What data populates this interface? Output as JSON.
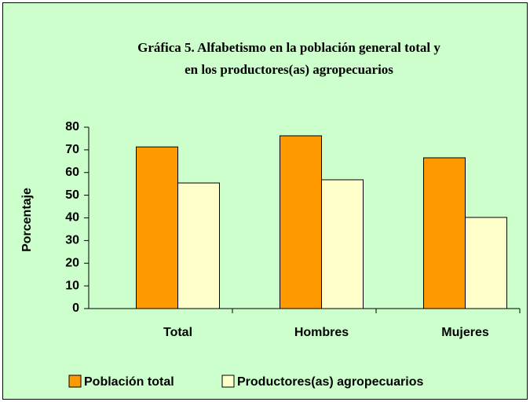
{
  "chart_data": {
    "type": "bar",
    "title": [
      "Gráfica 5. Alfabetismo en la población general total y",
      "en los productores(as) agropecuarios"
    ],
    "y_label": "Porcentaje",
    "categories": [
      "Total",
      "Hombres",
      "Mujeres"
    ],
    "series": [
      {
        "name": "Población total",
        "color": "#ff9900",
        "values": [
          71.3,
          76.2,
          66.5
        ]
      },
      {
        "name": "Productores(as) agropecuarios",
        "color": "#ffffcc",
        "values": [
          55.4,
          56.8,
          40.2
        ]
      }
    ],
    "ylim": [
      0,
      80
    ],
    "yticks": [
      0,
      10,
      20,
      30,
      40,
      50,
      60,
      70,
      80
    ],
    "background": "#ccffcc",
    "legend": "bottom"
  }
}
